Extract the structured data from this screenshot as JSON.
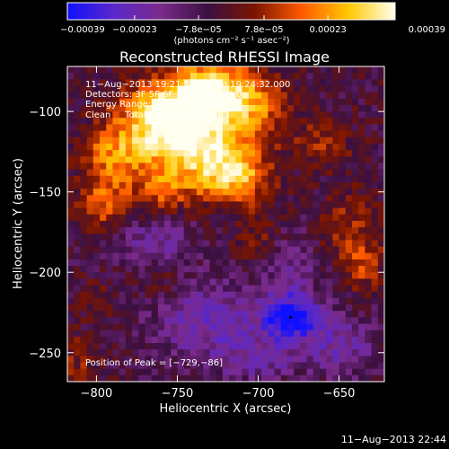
{
  "chart_data": {
    "type": "heatmap",
    "title": "Reconstructed RHESSI Image",
    "xlabel": "Heliocentric X (arcsec)",
    "ylabel": "Heliocentric Y (arcsec)",
    "xlim": [
      -818,
      -622
    ],
    "ylim": [
      -268,
      -72
    ],
    "x_ticks": [
      -800,
      -750,
      -700,
      -650
    ],
    "y_ticks": [
      -100,
      -150,
      -200,
      -250
    ],
    "x_tick_labels": [
      "−800",
      "−750",
      "−700",
      "−650"
    ],
    "y_tick_labels": [
      "−100",
      "−150",
      "−200",
      "−250"
    ],
    "colorbar": {
      "range": [
        -0.00039,
        0.00039
      ],
      "tick_values": [
        -0.00039,
        -0.00023,
        -7.8e-05,
        7.8e-05,
        0.00023,
        0.00039
      ],
      "tick_labels": [
        "−0.00039",
        "−0.00023",
        "−7.8e−05",
        "7.8e−05",
        "0.00023",
        "0.00039"
      ],
      "unit_label": "(photons cm⁻² s⁻¹ asec⁻²)",
      "colors": [
        "#1010ff",
        "#5a28c8",
        "#7a2a8a",
        "#3a1040",
        "#7a1500",
        "#ff5a00",
        "#ffc800",
        "#fffff0"
      ]
    },
    "annotations": [
      "11−Aug−2013 19:21:52.000 to 19:24:32.000",
      "Detectors: 3F 5F 6F 7F 8F 9F, Att 0",
      "Energy Range: 12.0 − 25.0 keV",
      "Clean     Total counts: 4.06e+03"
    ],
    "peak_label": "Position of Peak = [−729,−86]",
    "peak": [
      -729,
      -86
    ],
    "blobs": [
      {
        "x": -728,
        "y": -88,
        "sx": 20,
        "sy": 14,
        "a": 0.0004
      },
      {
        "x": -762,
        "y": -104,
        "sx": 18,
        "sy": 16,
        "a": 0.0003
      },
      {
        "x": -740,
        "y": -120,
        "sx": 22,
        "sy": 18,
        "a": 0.00034
      },
      {
        "x": -715,
        "y": -140,
        "sx": 16,
        "sy": 12,
        "a": 0.0003
      },
      {
        "x": -790,
        "y": -128,
        "sx": 14,
        "sy": 14,
        "a": 0.00022
      },
      {
        "x": -796,
        "y": -158,
        "sx": 12,
        "sy": 12,
        "a": 0.00018
      },
      {
        "x": -760,
        "y": -150,
        "sx": 12,
        "sy": 10,
        "a": 0.00016
      },
      {
        "x": -700,
        "y": -100,
        "sx": 16,
        "sy": 12,
        "a": 0.00014
      },
      {
        "x": -660,
        "y": -120,
        "sx": 14,
        "sy": 10,
        "a": 0.00012
      },
      {
        "x": -645,
        "y": -170,
        "sx": 12,
        "sy": 16,
        "a": 0.00012
      },
      {
        "x": -635,
        "y": -195,
        "sx": 10,
        "sy": 12,
        "a": 0.00015
      },
      {
        "x": -700,
        "y": -180,
        "sx": 10,
        "sy": 12,
        "a": 0.0001
      },
      {
        "x": -760,
        "y": -205,
        "sx": 10,
        "sy": 10,
        "a": 9e-05
      },
      {
        "x": -800,
        "y": -215,
        "sx": 8,
        "sy": 8,
        "a": 8e-05
      },
      {
        "x": -812,
        "y": -255,
        "sx": 10,
        "sy": 12,
        "a": 0.0001
      },
      {
        "x": -680,
        "y": -228,
        "sx": 12,
        "sy": 10,
        "a": -0.00036
      },
      {
        "x": -730,
        "y": -230,
        "sx": 24,
        "sy": 18,
        "a": -0.00018
      },
      {
        "x": -765,
        "y": -182,
        "sx": 16,
        "sy": 12,
        "a": -0.00015
      },
      {
        "x": -650,
        "y": -245,
        "sx": 16,
        "sy": 14,
        "a": -0.00016
      },
      {
        "x": -680,
        "y": -195,
        "sx": 14,
        "sy": 14,
        "a": -0.00012
      },
      {
        "x": -700,
        "y": -255,
        "sx": 18,
        "sy": 10,
        "a": -0.00012
      }
    ]
  },
  "footer": {
    "timestamp": "11−Aug−2013 22:44"
  }
}
